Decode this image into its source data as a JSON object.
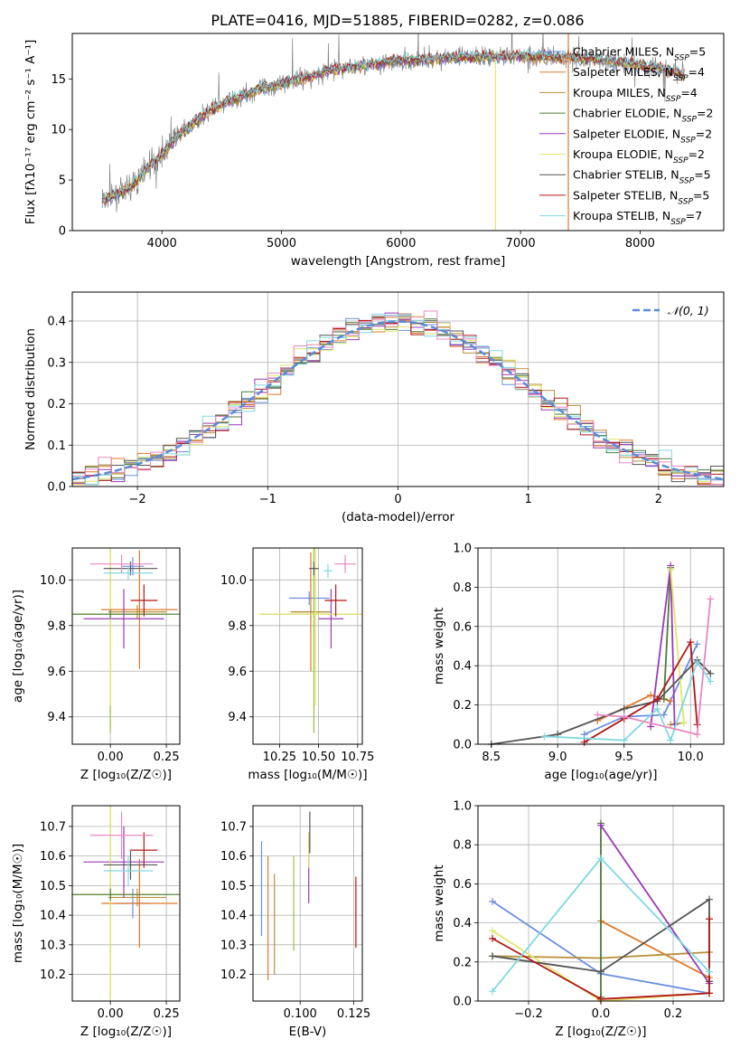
{
  "colors": {
    "chabrier_miles": "#6b8fe0",
    "salpeter_miles": "#e07828",
    "kroupa_miles": "#b8903a",
    "chabrier_elodie": "#4f7a3a",
    "salpeter_elodie": "#9a3ab8",
    "kroupa_elodie": "#e3e66a",
    "chabrier_stelib": "#555555",
    "salpeter_stelib": "#b01818",
    "kroupa_stelib": "#80d8e0",
    "pink": "#e888c0",
    "lime": "#98c040",
    "gauss": "#5b8ad6"
  },
  "chart_data": [
    {
      "id": "spectrum",
      "type": "line",
      "title": "PLATE=0416, MJD=51885, FIBERID=0282, z=0.086",
      "xlabel": "wavelength [Angstrom, rest frame]",
      "ylabel": "Flux [fλ10⁻¹⁷ erg cm⁻² s⁻¹ A⁻¹]",
      "xlim": [
        3250,
        8700
      ],
      "ylim": [
        0,
        19.5
      ],
      "xticks": [
        "4000",
        "5000",
        "6000",
        "7000",
        "8000"
      ],
      "yticks": [
        "0",
        "5",
        "10",
        "15"
      ],
      "grid": false,
      "legend_position": "right",
      "legend": [
        "Chabrier MILES, N_SSP=5",
        "Salpeter MILES, N_SSP=4",
        "Kroupa MILES, N_SSP=4",
        "Chabrier ELODIE, N_SSP=2",
        "Salpeter ELODIE, N_SSP=2",
        "Kroupa ELODIE, N_SSP=2",
        "Chabrier STELIB, N_SSP=5",
        "Salpeter STELIB, N_SSP=5",
        "Kroupa STELIB, N_SSP=7"
      ],
      "continuum": {
        "x": [
          3500,
          3700,
          3800,
          3900,
          4000,
          4100,
          4300,
          4500,
          4800,
          5000,
          5300,
          5500,
          5800,
          6000,
          6300,
          6600,
          6800,
          7000,
          7300,
          7600,
          7900,
          8200,
          8350
        ],
        "y": [
          3.0,
          4.0,
          5.0,
          6.5,
          7.5,
          9.0,
          11.0,
          12.5,
          14.0,
          14.5,
          15.5,
          16.0,
          16.5,
          16.8,
          17.0,
          17.2,
          17.2,
          17.3,
          17.2,
          17.0,
          16.5,
          16.0,
          15.5
        ]
      }
    },
    {
      "id": "residuals",
      "type": "histogram",
      "xlabel": "(data-model)/error",
      "ylabel": "Normed distribution",
      "xlim": [
        -2.5,
        2.5
      ],
      "ylim": [
        0,
        0.47
      ],
      "xticks": [
        "−2",
        "−1",
        "0",
        "1",
        "2"
      ],
      "yticks": [
        "0.0",
        "0.1",
        "0.2",
        "0.3",
        "0.4"
      ],
      "grid": true,
      "legend_position": "top-right",
      "legend": [
        "𝒩(0, 1)"
      ]
    },
    {
      "id": "age_vs_Z",
      "type": "scatter",
      "xlabel": "Z [log₁₀(Z/Z☉)]",
      "ylabel": "age  [log₁₀(age/yr)]",
      "xlim": [
        -0.17,
        0.31
      ],
      "ylim": [
        9.28,
        10.14
      ],
      "xticks": [
        "0.00",
        "0.25"
      ],
      "yticks": [
        "9.4",
        "9.6",
        "9.8",
        "10.0"
      ],
      "grid": true,
      "points": [
        {
          "x": 0.1,
          "xerr": 0.05,
          "y": 10.06,
          "yerr": 0.04
        },
        {
          "x": 0.13,
          "xerr": 0.17,
          "y": 9.87,
          "yerr": 0.26
        },
        {
          "x": 0.12,
          "xerr": 0.13,
          "y": 9.86,
          "yerr": 0.03
        },
        {
          "x": 0.0,
          "xerr": 0.22,
          "y": 9.85,
          "yerr": 0.52
        },
        {
          "x": 0.06,
          "xerr": 0.18,
          "y": 9.83,
          "yerr": 0.13
        },
        {
          "x": 0.0,
          "xerr": 0.27,
          "y": 9.85,
          "yerr": 0.4
        },
        {
          "x": 0.09,
          "xerr": 0.12,
          "y": 10.05,
          "yerr": 0.03
        },
        {
          "x": 0.15,
          "xerr": 0.06,
          "y": 9.91,
          "yerr": 0.07
        },
        {
          "x": 0.08,
          "xerr": 0.11,
          "y": 10.03,
          "yerr": 0.03
        },
        {
          "x": 0.05,
          "xerr": 0.14,
          "y": 10.07,
          "yerr": 0.04
        },
        {
          "x": 0.0,
          "xerr": 0.31,
          "y": 9.85,
          "yerr": 0.02
        }
      ]
    },
    {
      "id": "age_vs_mass",
      "type": "scatter",
      "xlabel": "mass [log₁₀(M/M☉)]",
      "ylabel": "",
      "xlim": [
        10.08,
        10.78
      ],
      "ylim": [
        9.28,
        10.14
      ],
      "xticks": [
        "10.25",
        "10.50",
        "10.75"
      ],
      "yticks": [
        "9.4",
        "9.6",
        "9.8",
        "10.0"
      ],
      "grid": true,
      "points": [
        {
          "x": 10.44,
          "xerr": 0.13,
          "y": 9.92,
          "yerr": 0.03
        },
        {
          "x": 10.45,
          "xerr": 0.12,
          "y": 9.86,
          "yerr": 0.26
        },
        {
          "x": 10.45,
          "xerr": 0.13,
          "y": 9.86,
          "yerr": 0.03
        },
        {
          "x": 10.47,
          "xerr": 0.35,
          "y": 9.85,
          "yerr": 0.52
        },
        {
          "x": 10.58,
          "xerr": 0.08,
          "y": 9.83,
          "yerr": 0.13
        },
        {
          "x": 10.48,
          "xerr": 0.36,
          "y": 9.85,
          "yerr": 0.4
        },
        {
          "x": 10.47,
          "xerr": 0.03,
          "y": 10.05,
          "yerr": 0.03
        },
        {
          "x": 10.61,
          "xerr": 0.07,
          "y": 9.91,
          "yerr": 0.07
        },
        {
          "x": 10.56,
          "xerr": 0.03,
          "y": 10.04,
          "yerr": 0.03
        },
        {
          "x": 10.67,
          "xerr": 0.07,
          "y": 10.07,
          "yerr": 0.04
        }
      ]
    },
    {
      "id": "weight_vs_age",
      "type": "line",
      "xlabel": "age  [log₁₀(age/yr)]",
      "ylabel": "mass weight",
      "xlim": [
        8.4,
        10.25
      ],
      "ylim": [
        0,
        1.0
      ],
      "xticks": [
        "8.5",
        "9.0",
        "9.5",
        "10.0"
      ],
      "yticks": [
        "0.0",
        "0.2",
        "0.4",
        "0.6",
        "0.8",
        "1.0"
      ],
      "grid": true,
      "series": [
        {
          "x": [
            9.2,
            9.5,
            9.8,
            10.05
          ],
          "y": [
            0.05,
            0.14,
            0.15,
            0.51
          ]
        },
        {
          "x": [
            9.3,
            9.7,
            9.85
          ],
          "y": [
            0.12,
            0.25,
            0.22
          ]
        },
        {
          "x": [
            9.85,
            9.95
          ],
          "y": [
            0.1,
            0.11
          ]
        },
        {
          "x": [
            9.8,
            9.85
          ],
          "y": [
            0.23,
            0.9
          ]
        },
        {
          "x": [
            9.7,
            9.85,
            9.88
          ],
          "y": [
            0.09,
            0.91,
            0.1
          ]
        },
        {
          "x": [
            9.85,
            9.95
          ],
          "y": [
            0.89,
            0.11
          ]
        },
        {
          "x": [
            8.5,
            9.0,
            9.5,
            9.75,
            10.05,
            10.15
          ],
          "y": [
            0.0,
            0.05,
            0.18,
            0.22,
            0.43,
            0.36
          ]
        },
        {
          "x": [
            9.2,
            9.5,
            9.75,
            10.0,
            10.05
          ],
          "y": [
            0.01,
            0.13,
            0.23,
            0.52,
            0.1
          ]
        },
        {
          "x": [
            8.9,
            9.5,
            9.75,
            9.85,
            10.05,
            10.15
          ],
          "y": [
            0.04,
            0.02,
            0.18,
            0.02,
            0.42,
            0.32
          ]
        },
        {
          "x": [
            9.3,
            9.5,
            10.05,
            10.15
          ],
          "y": [
            0.15,
            0.14,
            0.05,
            0.74
          ]
        }
      ]
    },
    {
      "id": "mass_vs_Z",
      "type": "scatter",
      "xlabel": "Z [log₁₀(Z/Z☉)]",
      "ylabel": "mass [log₁₀(M/M☉)]",
      "xlim": [
        -0.17,
        0.31
      ],
      "ylim": [
        10.11,
        10.77
      ],
      "xticks": [
        "0.00",
        "0.25"
      ],
      "yticks": [
        "10.2",
        "10.3",
        "10.4",
        "10.5",
        "10.6",
        "10.7"
      ],
      "grid": true,
      "points": [
        {
          "x": 0.1,
          "xerr": 0.08,
          "y": 10.44,
          "yerr": 0.05
        },
        {
          "x": 0.13,
          "xerr": 0.17,
          "y": 10.44,
          "yerr": 0.15
        },
        {
          "x": 0.12,
          "xerr": 0.13,
          "y": 10.46,
          "yerr": 0.03
        },
        {
          "x": 0.0,
          "xerr": 0.22,
          "y": 10.47,
          "yerr": 0.35
        },
        {
          "x": 0.06,
          "xerr": 0.18,
          "y": 10.58,
          "yerr": 0.12
        },
        {
          "x": 0.0,
          "xerr": 0.27,
          "y": 10.47,
          "yerr": 0.36
        },
        {
          "x": 0.09,
          "xerr": 0.12,
          "y": 10.57,
          "yerr": 0.05
        },
        {
          "x": 0.15,
          "xerr": 0.06,
          "y": 10.62,
          "yerr": 0.06
        },
        {
          "x": 0.08,
          "xerr": 0.11,
          "y": 10.55,
          "yerr": 0.05
        },
        {
          "x": 0.05,
          "xerr": 0.14,
          "y": 10.67,
          "yerr": 0.08
        },
        {
          "x": 0.0,
          "xerr": 0.31,
          "y": 10.47,
          "yerr": 0.02
        }
      ]
    },
    {
      "id": "mass_vs_ebv",
      "type": "scatter",
      "xlabel": "E(B-V)",
      "ylabel": "",
      "xlim": [
        0.078,
        0.129
      ],
      "ylim": [
        10.11,
        10.77
      ],
      "xticks": [
        "0.100",
        "0.125"
      ],
      "yticks": [
        "10.2",
        "10.3",
        "10.4",
        "10.5",
        "10.6",
        "10.7"
      ],
      "grid": true,
      "points": [
        {
          "x": 0.082,
          "y": 10.49,
          "yerr": 0.16
        },
        {
          "x": 0.085,
          "y": 10.39,
          "yerr": 0.21
        },
        {
          "x": 0.088,
          "y": 10.37,
          "yerr": 0.17
        },
        {
          "x": 0.097,
          "y": 10.44,
          "yerr": 0.16
        },
        {
          "x": 0.104,
          "y": 10.56,
          "yerr": 0.12
        },
        {
          "x": 0.104,
          "y": 10.62,
          "yerr": 0.06
        },
        {
          "x": 0.1045,
          "y": 10.68,
          "yerr": 0.07
        },
        {
          "x": 0.126,
          "y": 10.41,
          "yerr": 0.12
        }
      ]
    },
    {
      "id": "weight_vs_Z",
      "type": "line",
      "xlabel": "Z [log₁₀(Z/Z☉)]",
      "ylabel": "mass weight",
      "xlim": [
        -0.34,
        0.34
      ],
      "ylim": [
        0,
        1.0
      ],
      "xticks": [
        "−0.2",
        "0.0",
        "0.2"
      ],
      "yticks": [
        "0.0",
        "0.2",
        "0.4",
        "0.6",
        "0.8",
        "1.0"
      ],
      "grid": true,
      "series": [
        {
          "x": [
            -0.3,
            0.0,
            0.3
          ],
          "y": [
            0.51,
            0.14,
            0.04
          ]
        },
        {
          "x": [
            0.0,
            0.3
          ],
          "y": [
            0.41,
            0.12
          ]
        },
        {
          "x": [
            -0.3,
            0.0,
            0.3
          ],
          "y": [
            0.23,
            0.22,
            0.25
          ]
        },
        {
          "x": [
            0.0,
            0.0
          ],
          "y": [
            0.91,
            0.02
          ]
        },
        {
          "x": [
            0.0,
            0.3
          ],
          "y": [
            0.9,
            0.09
          ]
        },
        {
          "x": [
            -0.3,
            0.0,
            0.3
          ],
          "y": [
            0.36,
            0.0,
            0.04
          ]
        },
        {
          "x": [
            -0.3,
            0.0,
            0.3,
            0.3
          ],
          "y": [
            0.23,
            0.15,
            0.52,
            0.1
          ]
        },
        {
          "x": [
            -0.3,
            0.0,
            0.3,
            0.3
          ],
          "y": [
            0.32,
            0.01,
            0.04,
            0.42
          ]
        },
        {
          "x": [
            -0.3,
            0.0,
            0.3
          ],
          "y": [
            0.05,
            0.73,
            0.15
          ]
        }
      ]
    }
  ]
}
